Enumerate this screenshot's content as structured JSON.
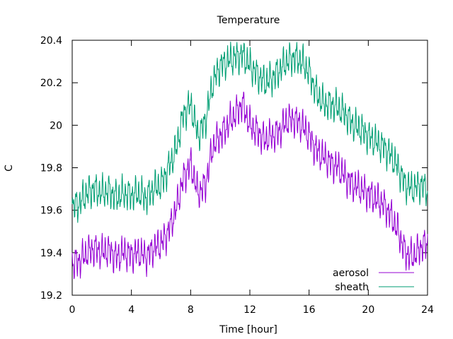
{
  "chart_data": {
    "type": "line",
    "title": "Temperature",
    "xlabel": "Time [hour]",
    "ylabel": "C",
    "xlim": [
      0,
      24
    ],
    "ylim": [
      19.2,
      20.4
    ],
    "xticks": [
      0,
      4,
      8,
      12,
      16,
      20,
      24
    ],
    "yticks": [
      19.2,
      19.4,
      19.6,
      19.8,
      20.0,
      20.2,
      20.4
    ],
    "ytick_labels": [
      "19.2",
      "19.4",
      "19.6",
      "19.8",
      "20",
      "20.2",
      "20.4"
    ],
    "grid": false,
    "legend_position": "bottom-right",
    "series": [
      {
        "name": "aerosol",
        "color": "#9400d3",
        "x": [
          0,
          0.5,
          1,
          1.5,
          2,
          2.5,
          3,
          3.5,
          4,
          4.5,
          5,
          5.5,
          6,
          6.5,
          7,
          7.5,
          8,
          8.5,
          9,
          9.5,
          10,
          10.5,
          11,
          11.5,
          12,
          12.5,
          13,
          13.5,
          14,
          14.5,
          15,
          15.5,
          16,
          16.5,
          17,
          17.5,
          18,
          18.5,
          19,
          19.5,
          20,
          20.5,
          21,
          21.5,
          22,
          22.5,
          23,
          23.5,
          24
        ],
        "y": [
          19.35,
          19.36,
          19.4,
          19.42,
          19.4,
          19.41,
          19.38,
          19.4,
          19.39,
          19.4,
          19.38,
          19.42,
          19.44,
          19.5,
          19.6,
          19.75,
          19.82,
          19.68,
          19.72,
          19.9,
          19.95,
          20.0,
          20.05,
          20.1,
          20.0,
          19.97,
          19.93,
          19.95,
          19.97,
          20.02,
          20.03,
          20.0,
          19.95,
          19.88,
          19.85,
          19.82,
          19.8,
          19.75,
          19.72,
          19.7,
          19.68,
          19.65,
          19.63,
          19.58,
          19.5,
          19.4,
          19.38,
          19.42,
          19.45
        ]
      },
      {
        "name": "sheath",
        "color": "#009e73",
        "x": [
          0,
          0.5,
          1,
          1.5,
          2,
          2.5,
          3,
          3.5,
          4,
          4.5,
          5,
          5.5,
          6,
          6.5,
          7,
          7.5,
          8,
          8.5,
          9,
          9.5,
          10,
          10.5,
          11,
          11.5,
          12,
          12.5,
          13,
          13.5,
          14,
          14.5,
          15,
          15.5,
          16,
          16.5,
          17,
          17.5,
          18,
          18.5,
          19,
          19.5,
          20,
          20.5,
          21,
          21.5,
          22,
          22.5,
          23,
          23.5,
          24
        ],
        "y": [
          19.62,
          19.63,
          19.68,
          19.7,
          19.68,
          19.69,
          19.66,
          19.68,
          19.67,
          19.68,
          19.66,
          19.7,
          19.72,
          19.8,
          19.88,
          20.05,
          20.1,
          19.95,
          20.02,
          20.2,
          20.28,
          20.3,
          20.32,
          20.33,
          20.28,
          20.24,
          20.2,
          20.22,
          20.26,
          20.3,
          20.32,
          20.3,
          20.25,
          20.15,
          20.1,
          20.1,
          20.08,
          20.05,
          20.0,
          19.98,
          19.95,
          19.92,
          19.9,
          19.86,
          19.8,
          19.72,
          19.7,
          19.72,
          19.7
        ]
      }
    ]
  }
}
